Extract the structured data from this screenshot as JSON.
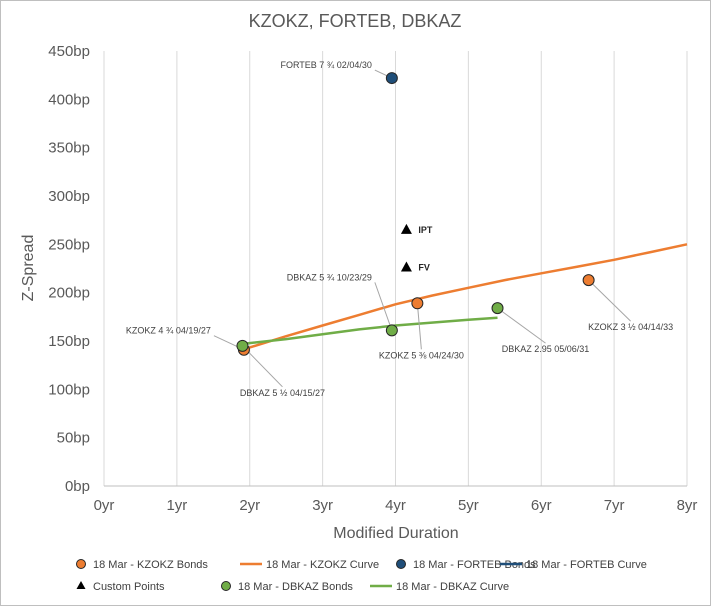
{
  "chart_data": {
    "type": "scatter",
    "title": "KZOKZ, FORTEB, DBKAZ",
    "xlabel": "Modified Duration",
    "ylabel": "Z-Spread",
    "xlim": [
      0,
      8
    ],
    "ylim": [
      0,
      450
    ],
    "x_ticks": [
      "0yr",
      "1yr",
      "2yr",
      "3yr",
      "4yr",
      "5yr",
      "6yr",
      "7yr",
      "8yr"
    ],
    "y_ticks": [
      "0bp",
      "50bp",
      "100bp",
      "150bp",
      "200bp",
      "250bp",
      "300bp",
      "350bp",
      "400bp",
      "450bp"
    ],
    "grid": "vertical",
    "legend_position": "bottom",
    "colors": {
      "kzokz": "#ed7d31",
      "forteb": "#1f4e79",
      "dbkaz": "#70ad47",
      "custom": "#000000"
    },
    "series": [
      {
        "name": "18 Mar - KZOKZ Bonds",
        "kind": "points",
        "color": "#ed7d31",
        "points": [
          {
            "x": 1.92,
            "y": 141,
            "label": "KZOKZ 4 ¾ 04/19/27"
          },
          {
            "x": 4.3,
            "y": 189,
            "label": "KZOKZ 5 ⅜ 04/24/30"
          },
          {
            "x": 6.65,
            "y": 213,
            "label": "KZOKZ 3 ½ 04/14/33"
          }
        ]
      },
      {
        "name": "18 Mar - KZOKZ Curve",
        "kind": "line",
        "color": "#ed7d31",
        "points": [
          {
            "x": 1.9,
            "y": 141
          },
          {
            "x": 2.5,
            "y": 155
          },
          {
            "x": 3.0,
            "y": 166
          },
          {
            "x": 3.5,
            "y": 177
          },
          {
            "x": 4.0,
            "y": 188
          },
          {
            "x": 4.5,
            "y": 197
          },
          {
            "x": 5.0,
            "y": 205
          },
          {
            "x": 5.5,
            "y": 213
          },
          {
            "x": 6.0,
            "y": 220
          },
          {
            "x": 6.5,
            "y": 227
          },
          {
            "x": 7.0,
            "y": 234
          },
          {
            "x": 7.5,
            "y": 242
          },
          {
            "x": 8.0,
            "y": 250
          }
        ]
      },
      {
        "name": "18 Mar - FORTEB Bonds",
        "kind": "points",
        "color": "#1f4e79",
        "points": [
          {
            "x": 3.95,
            "y": 422,
            "label": "FORTEB 7 ¾ 02/04/30"
          }
        ]
      },
      {
        "name": "18 Mar - FORTEB Curve",
        "kind": "line",
        "color": "#1f4e79",
        "points": []
      },
      {
        "name": "Custom Points",
        "kind": "triangles",
        "color": "#000000",
        "points": [
          {
            "x": 4.15,
            "y": 265,
            "label": "IPT"
          },
          {
            "x": 4.15,
            "y": 226,
            "label": "FV"
          }
        ]
      },
      {
        "name": "18 Mar - DBKAZ Bonds",
        "kind": "points",
        "color": "#70ad47",
        "points": [
          {
            "x": 1.9,
            "y": 145,
            "label": "DBKAZ 5 ½ 04/15/27"
          },
          {
            "x": 3.95,
            "y": 161,
            "label": "DBKAZ 5 ¾ 10/23/29"
          },
          {
            "x": 5.4,
            "y": 184,
            "label": "DBKAZ 2.95 05/06/31"
          }
        ]
      },
      {
        "name": "18 Mar - DBKAZ Curve",
        "kind": "line",
        "color": "#70ad47",
        "points": [
          {
            "x": 1.9,
            "y": 147
          },
          {
            "x": 2.5,
            "y": 152
          },
          {
            "x": 3.0,
            "y": 157
          },
          {
            "x": 3.5,
            "y": 162
          },
          {
            "x": 4.0,
            "y": 166
          },
          {
            "x": 4.5,
            "y": 169
          },
          {
            "x": 5.0,
            "y": 172
          },
          {
            "x": 5.4,
            "y": 174
          }
        ]
      }
    ]
  }
}
